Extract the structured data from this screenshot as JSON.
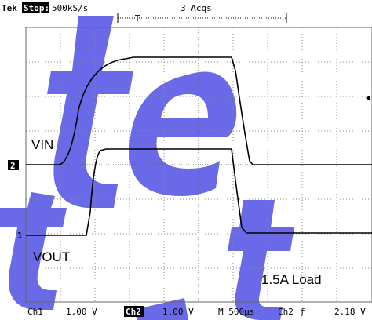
{
  "header": {
    "brand": "Tek",
    "state": "Stop:",
    "rate": "500kS/s",
    "acqs": "3 Acqs",
    "trigger_marker": "T"
  },
  "labels": {
    "vin": "VIN",
    "vout": "VOUT",
    "load": "1.5A Load",
    "ch2_marker": "2",
    "ch1_marker": "1"
  },
  "footer": {
    "ch1": "Ch1",
    "ch1_scale": "1.00 V",
    "ch2": "Ch2",
    "ch2_scale": "1.00 V",
    "time": "M 500µs",
    "trigger_source": "Ch2",
    "trigger_slope": "ƒ",
    "trigger_level": "2.18 V"
  }
}
